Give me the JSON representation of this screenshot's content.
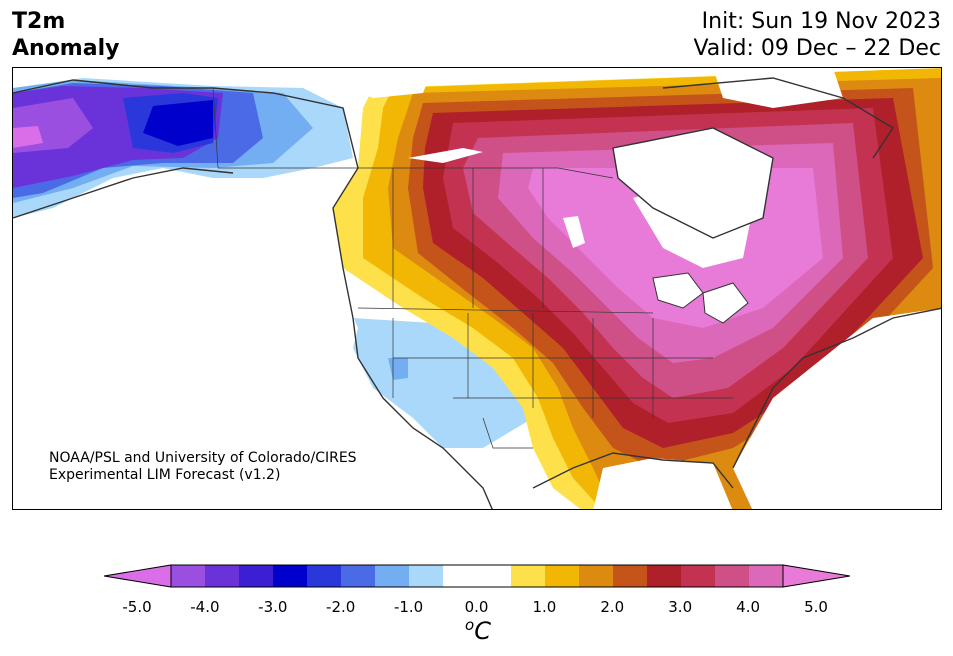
{
  "header": {
    "title_line1": "T2m",
    "title_line2": "Anomaly",
    "init": "Init: Sun 19 Nov 2023",
    "valid": "Valid: 09 Dec – 22 Dec"
  },
  "credit": {
    "line1": "NOAA/PSL and University of Colorado/CIRES",
    "line2": "Experimental LIM Forecast (v1.2)"
  },
  "colorbar": {
    "colors": [
      "#d96ee8",
      "#9b4fe0",
      "#6a33d9",
      "#3c1fd2",
      "#0000cc",
      "#2a38db",
      "#4b6be6",
      "#74aef2",
      "#aad8fa",
      "#ffffff",
      "#ffffff",
      "#fde04a",
      "#f2b705",
      "#dc8a10",
      "#c45419",
      "#b0202a",
      "#c43251",
      "#cf4f87",
      "#db68b9",
      "#e87ad8"
    ],
    "tick_labels": [
      "-5.0",
      "-4.0",
      "-3.0",
      "-2.0",
      "-1.0",
      "0.0",
      "1.0",
      "2.0",
      "3.0",
      "4.0",
      "5.0"
    ],
    "unit_base": "o",
    "unit_main": "C"
  },
  "map": {
    "region": "North America",
    "variable": "2 m temperature anomaly"
  }
}
